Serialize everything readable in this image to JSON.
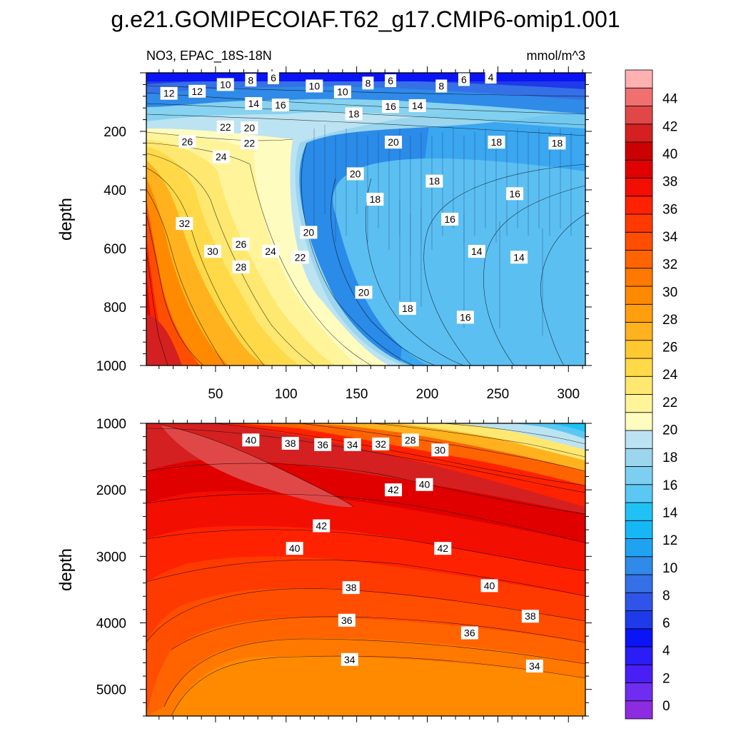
{
  "figure": {
    "title": "g.e21.GOMIPECOIAF.T62_g17.CMIP6-omip1.001",
    "subtitle_left": "NO3, EPAC_18S-18N",
    "units": "mmol/m^3"
  },
  "colorbar": {
    "levels": [
      0,
      2,
      4,
      6,
      8,
      10,
      12,
      14,
      16,
      18,
      20,
      22,
      24,
      26,
      28,
      30,
      32,
      34,
      36,
      38,
      40,
      42,
      44
    ],
    "tick_labels": [
      "0",
      "2",
      "4",
      "6",
      "8",
      "10",
      "12",
      "14",
      "16",
      "18",
      "20",
      "22",
      "24",
      "26",
      "28",
      "30",
      "32",
      "34",
      "36",
      "38",
      "40",
      "42",
      "44"
    ],
    "colors": [
      "#8c2be0",
      "#6e2df0",
      "#4a1ff5",
      "#2a1df5",
      "#0a14f5",
      "#1f3ae8",
      "#2f55e8",
      "#3570e6",
      "#2f8ae8",
      "#1fa3f0",
      "#15b8f5",
      "#20c2f5",
      "#5ac8f2",
      "#7ccff0",
      "#9bd5ee",
      "#bce3f2",
      "#fffcc0",
      "#fff49a",
      "#ffe870",
      "#ffd948",
      "#ffc830",
      "#ffb21e",
      "#ff9e0e",
      "#ff8a00",
      "#ff7800",
      "#ff6400",
      "#ff4e00",
      "#ff3a00",
      "#ff2200",
      "#f20e00",
      "#e00000",
      "#cc0000",
      "#d42020",
      "#e04848",
      "#f07070",
      "#ffb0b0"
    ]
  },
  "chart_data": [
    {
      "type": "heatmap",
      "name_hidden": false,
      "xlabel": "",
      "ylabel": "depth",
      "xlim": [
        1,
        312
      ],
      "ylim": [
        1000,
        0
      ],
      "x_ticks": [
        50,
        100,
        150,
        200,
        250,
        300
      ],
      "x_tick_labels": [
        "50",
        "100",
        "150",
        "200",
        "250",
        "300"
      ],
      "y_ticks": [
        200,
        400,
        600,
        800,
        1000
      ],
      "y_tick_labels": [
        "200",
        "400",
        "600",
        "800",
        "1000"
      ],
      "contour_labels": [
        {
          "x": 17,
          "y": 70,
          "v": "12"
        },
        {
          "x": 37,
          "y": 63,
          "v": "12"
        },
        {
          "x": 57,
          "y": 40,
          "v": "10"
        },
        {
          "x": 75,
          "y": 25,
          "v": "8"
        },
        {
          "x": 91,
          "y": 17,
          "v": "6"
        },
        {
          "x": 120,
          "y": 45,
          "v": "10"
        },
        {
          "x": 140,
          "y": 65,
          "v": "10"
        },
        {
          "x": 158,
          "y": 35,
          "v": "8"
        },
        {
          "x": 174,
          "y": 27,
          "v": "6"
        },
        {
          "x": 210,
          "y": 45,
          "v": "8"
        },
        {
          "x": 226,
          "y": 23,
          "v": "6"
        },
        {
          "x": 245,
          "y": 15,
          "v": "4"
        },
        {
          "x": 77,
          "y": 105,
          "v": "14"
        },
        {
          "x": 96,
          "y": 110,
          "v": "16"
        },
        {
          "x": 148,
          "y": 140,
          "v": "18"
        },
        {
          "x": 174,
          "y": 115,
          "v": "16"
        },
        {
          "x": 193,
          "y": 112,
          "v": "14"
        },
        {
          "x": 57,
          "y": 185,
          "v": "22"
        },
        {
          "x": 74,
          "y": 188,
          "v": "20"
        },
        {
          "x": 30,
          "y": 235,
          "v": "26"
        },
        {
          "x": 54,
          "y": 287,
          "v": "24"
        },
        {
          "x": 74,
          "y": 240,
          "v": "22"
        },
        {
          "x": 149,
          "y": 345,
          "v": "20"
        },
        {
          "x": 176,
          "y": 237,
          "v": "20"
        },
        {
          "x": 249,
          "y": 237,
          "v": "18"
        },
        {
          "x": 292,
          "y": 240,
          "v": "18"
        },
        {
          "x": 205,
          "y": 370,
          "v": "18"
        },
        {
          "x": 163,
          "y": 432,
          "v": "18"
        },
        {
          "x": 262,
          "y": 413,
          "v": "16"
        },
        {
          "x": 216,
          "y": 500,
          "v": "16"
        },
        {
          "x": 28,
          "y": 515,
          "v": "32"
        },
        {
          "x": 116,
          "y": 545,
          "v": "20"
        },
        {
          "x": 68,
          "y": 585,
          "v": "26"
        },
        {
          "x": 48,
          "y": 610,
          "v": "30"
        },
        {
          "x": 89,
          "y": 610,
          "v": "24"
        },
        {
          "x": 110,
          "y": 630,
          "v": "22"
        },
        {
          "x": 235,
          "y": 610,
          "v": "14"
        },
        {
          "x": 265,
          "y": 630,
          "v": "14"
        },
        {
          "x": 68,
          "y": 663,
          "v": "28"
        },
        {
          "x": 155,
          "y": 750,
          "v": "20"
        },
        {
          "x": 186,
          "y": 805,
          "v": "18"
        },
        {
          "x": 227,
          "y": 835,
          "v": "16"
        }
      ]
    },
    {
      "type": "heatmap",
      "xlabel": "",
      "ylabel": "depth",
      "xlim": [
        1,
        312
      ],
      "ylim": [
        5400,
        1000
      ],
      "y_ticks": [
        1000,
        2000,
        3000,
        4000,
        5000
      ],
      "y_tick_labels": [
        "1000",
        "2000",
        "3000",
        "4000",
        "5000"
      ],
      "contour_labels": [
        {
          "x": 75,
          "y": 1250,
          "v": "40"
        },
        {
          "x": 103,
          "y": 1300,
          "v": "38"
        },
        {
          "x": 126,
          "y": 1320,
          "v": "36"
        },
        {
          "x": 147,
          "y": 1320,
          "v": "34"
        },
        {
          "x": 167,
          "y": 1310,
          "v": "32"
        },
        {
          "x": 188,
          "y": 1250,
          "v": "28"
        },
        {
          "x": 209,
          "y": 1400,
          "v": "30"
        },
        {
          "x": 176,
          "y": 2000,
          "v": "42"
        },
        {
          "x": 198,
          "y": 1920,
          "v": "40"
        },
        {
          "x": 125,
          "y": 2540,
          "v": "42"
        },
        {
          "x": 106,
          "y": 2880,
          "v": "40"
        },
        {
          "x": 211,
          "y": 2880,
          "v": "42"
        },
        {
          "x": 146,
          "y": 3470,
          "v": "38"
        },
        {
          "x": 244,
          "y": 3440,
          "v": "40"
        },
        {
          "x": 143,
          "y": 3960,
          "v": "36"
        },
        {
          "x": 273,
          "y": 3900,
          "v": "38"
        },
        {
          "x": 230,
          "y": 4150,
          "v": "36"
        },
        {
          "x": 145,
          "y": 4550,
          "v": "34"
        },
        {
          "x": 276,
          "y": 4650,
          "v": "34"
        }
      ]
    }
  ]
}
